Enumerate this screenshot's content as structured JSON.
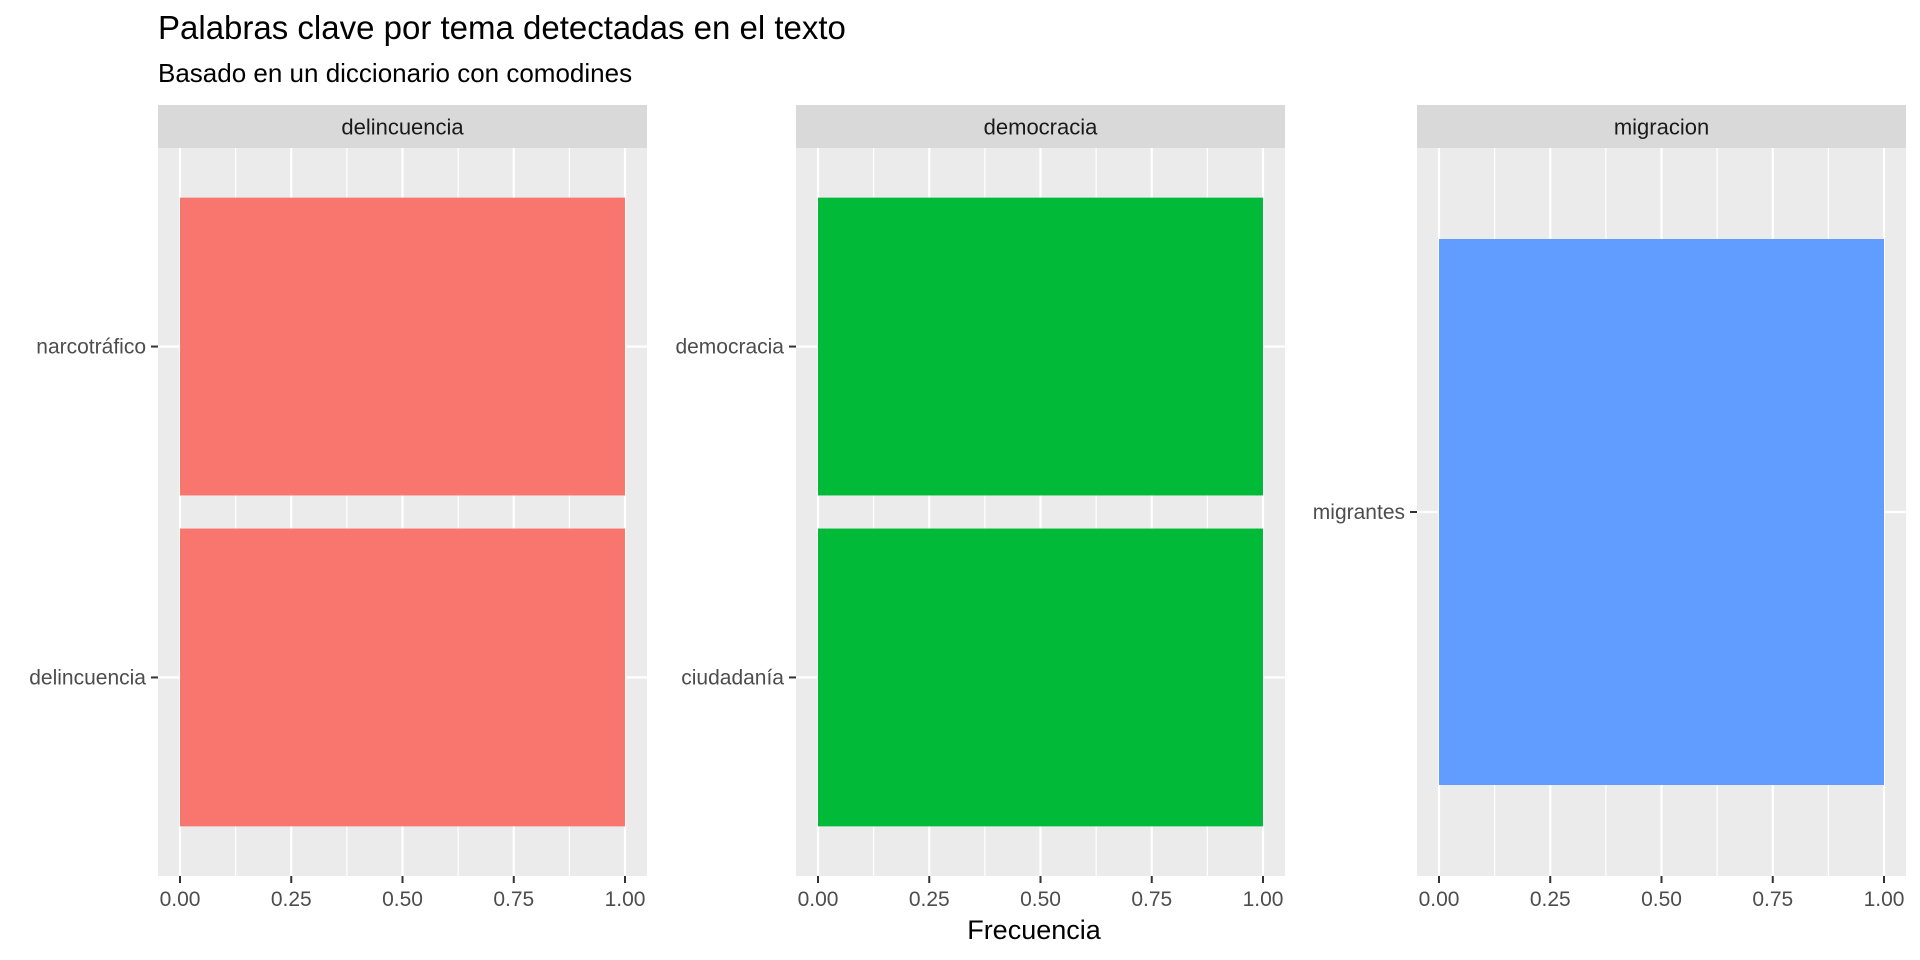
{
  "chart_data": {
    "type": "bar",
    "orientation": "horizontal",
    "title": "Palabras clave por tema detectadas en el texto",
    "subtitle": "Basado en un diccionario con comodines",
    "xlabel": "Frecuencia",
    "ylabel": "",
    "xlim": [
      0,
      1
    ],
    "xticks": [
      "0.00",
      "0.25",
      "0.50",
      "0.75",
      "1.00"
    ],
    "grid": true,
    "legend": "none",
    "facets": [
      {
        "name": "delincuencia",
        "color": "#F8766D",
        "categories": [
          "narcotráfico",
          "delincuencia"
        ],
        "values": [
          1,
          1
        ]
      },
      {
        "name": "democracia",
        "color": "#00BA38",
        "categories": [
          "democracia",
          "ciudadanía"
        ],
        "values": [
          1,
          1
        ]
      },
      {
        "name": "migracion",
        "color": "#619CFF",
        "categories": [
          "migrantes"
        ],
        "values": [
          1
        ]
      }
    ]
  }
}
